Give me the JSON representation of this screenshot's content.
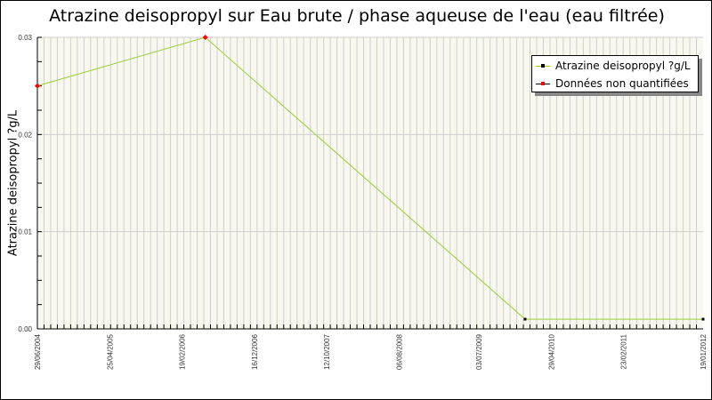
{
  "chart_data": {
    "type": "line",
    "title": "Atrazine deisopropyl sur Eau brute / phase aqueuse de l'eau (eau filtrée)",
    "xlabel": "",
    "ylabel": "Atrazine deisopropyl ?g/L",
    "xlim": [
      "29/06/2004",
      "19/01/2012"
    ],
    "ylim": [
      0,
      0.03
    ],
    "x_tick_labels": [
      "29/06/2004",
      "25/04/2005",
      "19/02/2006",
      "16/12/2006",
      "12/10/2007",
      "06/08/2008",
      "03/07/2009",
      "29/04/2010",
      "23/02/2011",
      "19/01/2012"
    ],
    "y_tick_labels": [
      "0.00",
      "0.01",
      "0.02",
      "0.03"
    ],
    "grid": true,
    "legend_position": "top-right",
    "series": [
      {
        "name": "Atrazine deisopropyl ?g/L",
        "color": "#9acd32",
        "marker_color": "#000000",
        "points": [
          {
            "x": "29/06/2004",
            "y": 0.025
          },
          {
            "x": "26/05/2006",
            "y": 0.03
          },
          {
            "x": "11/01/2010",
            "y": 0.001
          },
          {
            "x": "19/01/2012",
            "y": 0.001
          }
        ]
      },
      {
        "name": "Données non quantifiées",
        "color": "#000000",
        "marker_color": "#ff0000",
        "points": [
          {
            "x": "29/06/2004",
            "y": 0.025
          },
          {
            "x": "26/05/2006",
            "y": 0.03
          }
        ]
      }
    ]
  }
}
